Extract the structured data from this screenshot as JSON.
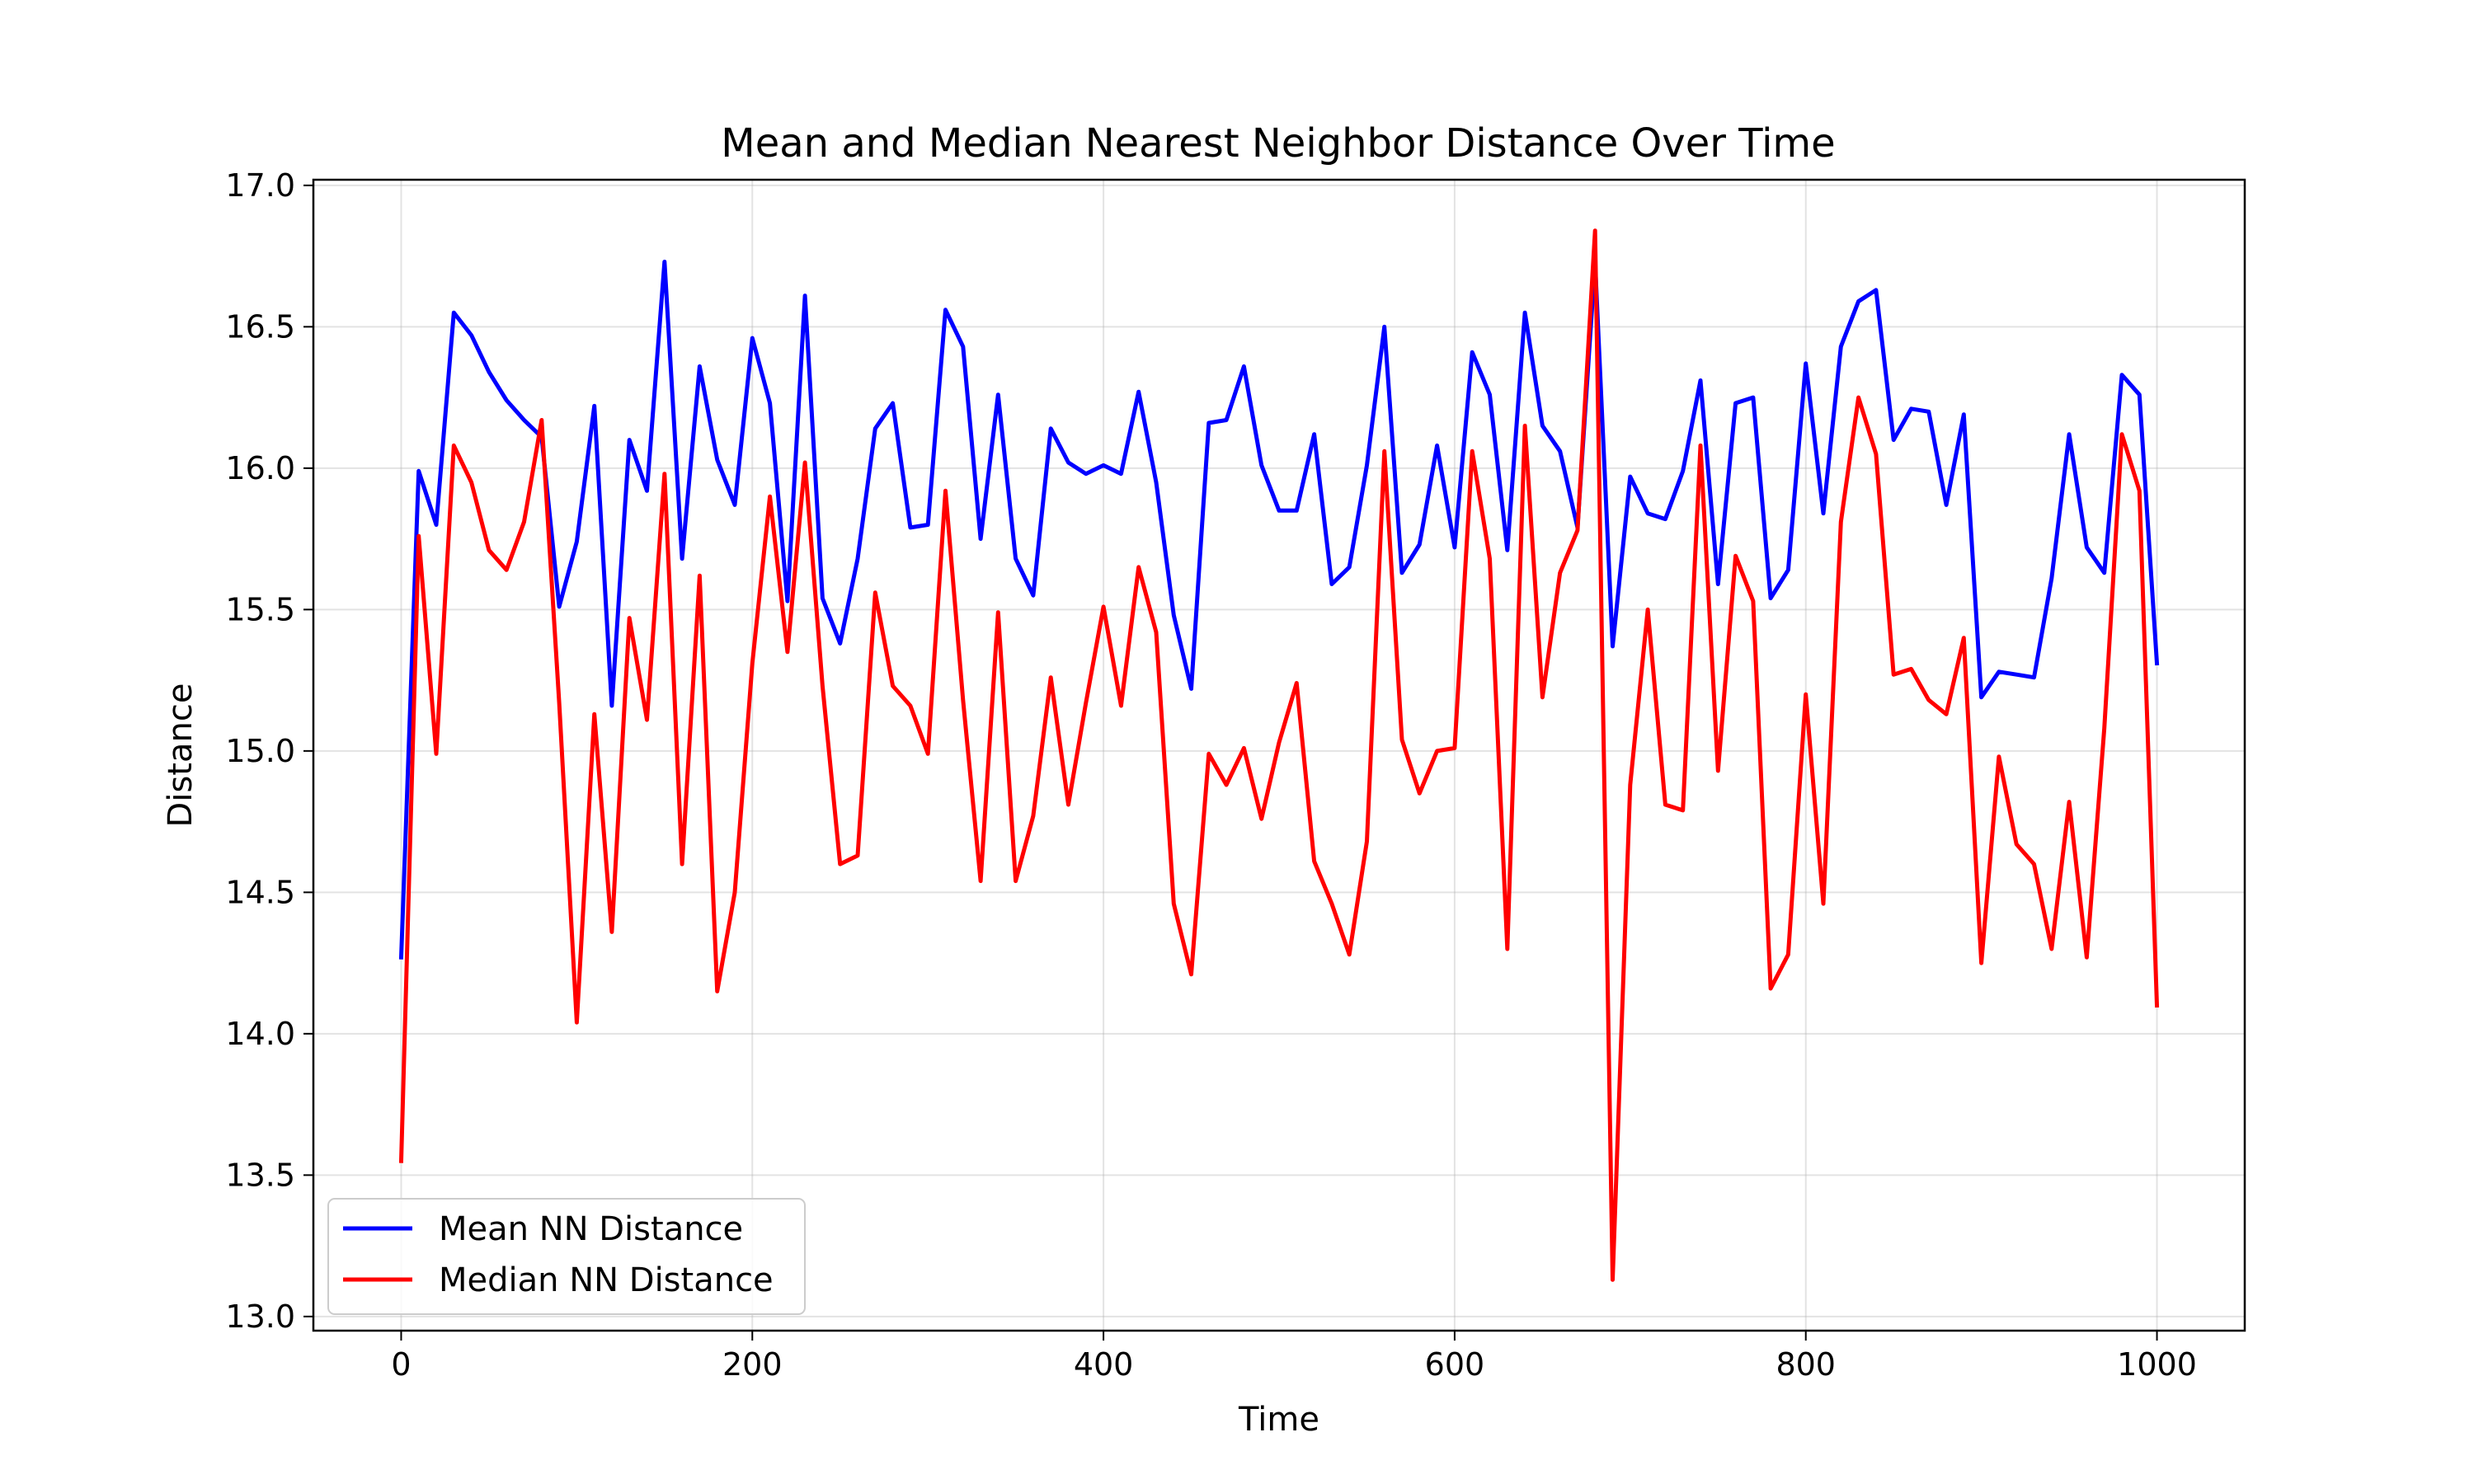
{
  "chart_data": {
    "type": "line",
    "title": "Mean and Median Nearest Neighbor Distance Over Time",
    "xlabel": "Time",
    "ylabel": "Distance",
    "xlim": [
      -50,
      1050
    ],
    "ylim": [
      12.95,
      17.02
    ],
    "xticks": [
      0,
      200,
      400,
      600,
      800,
      1000
    ],
    "yticks": [
      13.0,
      13.5,
      14.0,
      14.5,
      15.0,
      15.5,
      16.0,
      16.5,
      17.0
    ],
    "grid": true,
    "legend_position": "lower-left",
    "x": [
      0,
      10,
      20,
      30,
      40,
      50,
      60,
      70,
      80,
      90,
      100,
      110,
      120,
      130,
      140,
      150,
      160,
      170,
      180,
      190,
      200,
      210,
      220,
      230,
      240,
      250,
      260,
      270,
      280,
      290,
      300,
      310,
      320,
      330,
      340,
      350,
      360,
      370,
      380,
      390,
      400,
      410,
      420,
      430,
      440,
      450,
      460,
      470,
      480,
      490,
      500,
      510,
      520,
      530,
      540,
      550,
      560,
      570,
      580,
      590,
      600,
      610,
      620,
      630,
      640,
      650,
      660,
      670,
      680,
      690,
      700,
      710,
      720,
      730,
      740,
      750,
      760,
      770,
      780,
      790,
      800,
      810,
      820,
      830,
      840,
      850,
      860,
      870,
      880,
      890,
      900,
      910,
      920,
      930,
      940,
      950,
      960,
      970,
      980,
      990,
      1000
    ],
    "series": [
      {
        "name": "Mean NN Distance",
        "color": "#0000ff",
        "values": [
          14.27,
          15.99,
          15.8,
          16.55,
          16.47,
          16.34,
          16.24,
          16.17,
          16.11,
          15.51,
          15.74,
          16.22,
          15.16,
          16.1,
          15.92,
          16.73,
          15.68,
          16.36,
          16.03,
          15.87,
          16.46,
          16.23,
          15.53,
          16.61,
          15.54,
          15.38,
          15.68,
          16.14,
          16.23,
          15.79,
          15.8,
          16.56,
          16.43,
          15.75,
          16.26,
          15.68,
          15.55,
          16.14,
          16.02,
          15.98,
          16.01,
          15.98,
          16.27,
          15.95,
          15.48,
          15.22,
          16.16,
          16.17,
          16.36,
          16.01,
          15.85,
          15.85,
          16.12,
          15.59,
          15.65,
          16.01,
          16.5,
          15.63,
          15.73,
          16.08,
          15.72,
          16.41,
          16.26,
          15.71,
          16.55,
          16.15,
          16.06,
          15.79,
          16.73,
          15.37,
          15.97,
          15.84,
          15.82,
          15.99,
          16.31,
          15.59,
          16.23,
          16.25,
          15.54,
          15.64,
          16.37,
          15.84,
          16.43,
          16.59,
          16.63,
          16.1,
          16.21,
          16.2,
          15.87,
          16.19,
          15.19,
          15.28,
          15.27,
          15.26,
          15.61,
          16.12,
          15.72,
          15.63,
          16.33,
          16.26,
          15.31
        ]
      },
      {
        "name": "Median NN Distance",
        "color": "#ff0000",
        "values": [
          13.55,
          15.76,
          14.99,
          16.08,
          15.95,
          15.71,
          15.64,
          15.81,
          16.17,
          15.17,
          14.04,
          15.13,
          14.36,
          15.47,
          15.11,
          15.98,
          14.6,
          15.62,
          14.15,
          14.5,
          15.31,
          15.9,
          15.35,
          16.02,
          15.23,
          14.6,
          14.63,
          15.56,
          15.23,
          15.16,
          14.99,
          15.92,
          15.18,
          14.54,
          15.49,
          14.54,
          14.77,
          15.26,
          14.81,
          15.17,
          15.51,
          15.16,
          15.65,
          15.42,
          14.46,
          14.21,
          14.99,
          14.88,
          15.01,
          14.76,
          15.03,
          15.24,
          14.61,
          14.46,
          14.28,
          14.68,
          16.06,
          15.04,
          14.85,
          15.0,
          15.01,
          16.06,
          15.68,
          14.3,
          16.15,
          15.19,
          15.63,
          15.78,
          16.84,
          13.13,
          14.88,
          15.5,
          14.81,
          14.79,
          16.08,
          14.93,
          15.69,
          15.53,
          14.16,
          14.28,
          15.2,
          14.46,
          15.81,
          16.25,
          16.05,
          15.27,
          15.29,
          15.18,
          15.13,
          15.4,
          14.25,
          14.98,
          14.67,
          14.6,
          14.3,
          14.82,
          14.27,
          15.08,
          16.12,
          15.92,
          14.1
        ]
      }
    ]
  }
}
